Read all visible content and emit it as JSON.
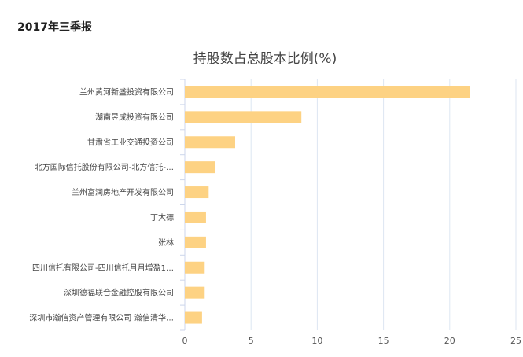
{
  "header": {
    "period_title": "2017年三季报"
  },
  "colors": {
    "bar": "#fdd283",
    "grid": "#dde6f2",
    "axis": "#ccd6eb"
  },
  "chart_data": {
    "type": "bar",
    "orientation": "horizontal",
    "title": "持股数占总股本比例(%)",
    "categories": [
      "兰州黄河新盛投资有限公司",
      "湖南昱成投资有限公司",
      "甘肃省工业交通投资公司",
      "北方国际信托股份有限公司-北方信托-…",
      "兰州富润房地产开发有限公司",
      "丁大德",
      "张林",
      "四川信托有限公司-四川信托月月增盈1…",
      "深圳德福联合金融控股有限公司",
      "深圳市瀚信资产管理有限公司-瀚信清华…"
    ],
    "values": [
      21.5,
      8.8,
      3.8,
      2.3,
      1.8,
      1.6,
      1.6,
      1.5,
      1.5,
      1.3
    ],
    "xlim": [
      0,
      25
    ],
    "xticks": [
      "0",
      "5",
      "10",
      "15",
      "20",
      "25"
    ],
    "grid": true,
    "legend": "none"
  }
}
